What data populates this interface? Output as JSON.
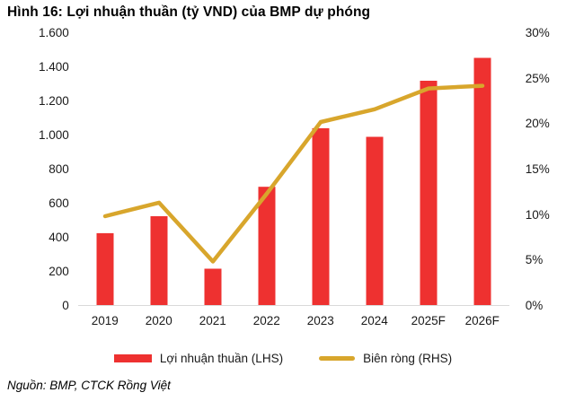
{
  "title": "Hình 16: Lợi nhuận thuần (tỷ VND) của BMP dự phóng",
  "source": "Nguồn: BMP, CTCK Rồng Việt",
  "colors": {
    "bar": "#EE3130",
    "line": "#D8A62C",
    "axis_line": "#D9D9D9",
    "text": "#1a1a1a"
  },
  "legend": {
    "items": [
      {
        "label": "Lợi nhuận thuần (LHS)",
        "type": "bar",
        "color": "#EE3130"
      },
      {
        "label": "Biên ròng (RHS)",
        "type": "line",
        "color": "#D8A62C"
      }
    ]
  },
  "chart_data": {
    "type": "bar+line combo",
    "title": "Hình 16: Lợi nhuận thuần (tỷ VND) của BMP dự phóng",
    "categories": [
      "2019",
      "2020",
      "2021",
      "2022",
      "2023",
      "2024",
      "2025F",
      "2026F"
    ],
    "series": [
      {
        "name": "Lợi nhuận thuần (LHS)",
        "type": "bar",
        "axis": "left",
        "unit": "tỷ VND",
        "color": "#EE3130",
        "values": [
          423,
          523,
          214,
          696,
          1041,
          990,
          1320,
          1455
        ]
      },
      {
        "name": "Biên ròng (RHS)",
        "type": "line",
        "axis": "right",
        "unit": "%",
        "color": "#D8A62C",
        "values": [
          9.8,
          11.3,
          4.8,
          12.3,
          20.2,
          21.6,
          23.9,
          24.2
        ]
      }
    ],
    "left_axis": {
      "min": 0,
      "max": 1600,
      "ticks": [
        "1.600",
        "1.400",
        "1.200",
        "1.000",
        "800",
        "600",
        "400",
        "200",
        "0"
      ]
    },
    "right_axis": {
      "min": 0,
      "max": 30,
      "ticks": [
        "30%",
        "25%",
        "20%",
        "15%",
        "10%",
        "5%",
        "0%"
      ]
    },
    "grid": false,
    "legend_position": "bottom"
  }
}
